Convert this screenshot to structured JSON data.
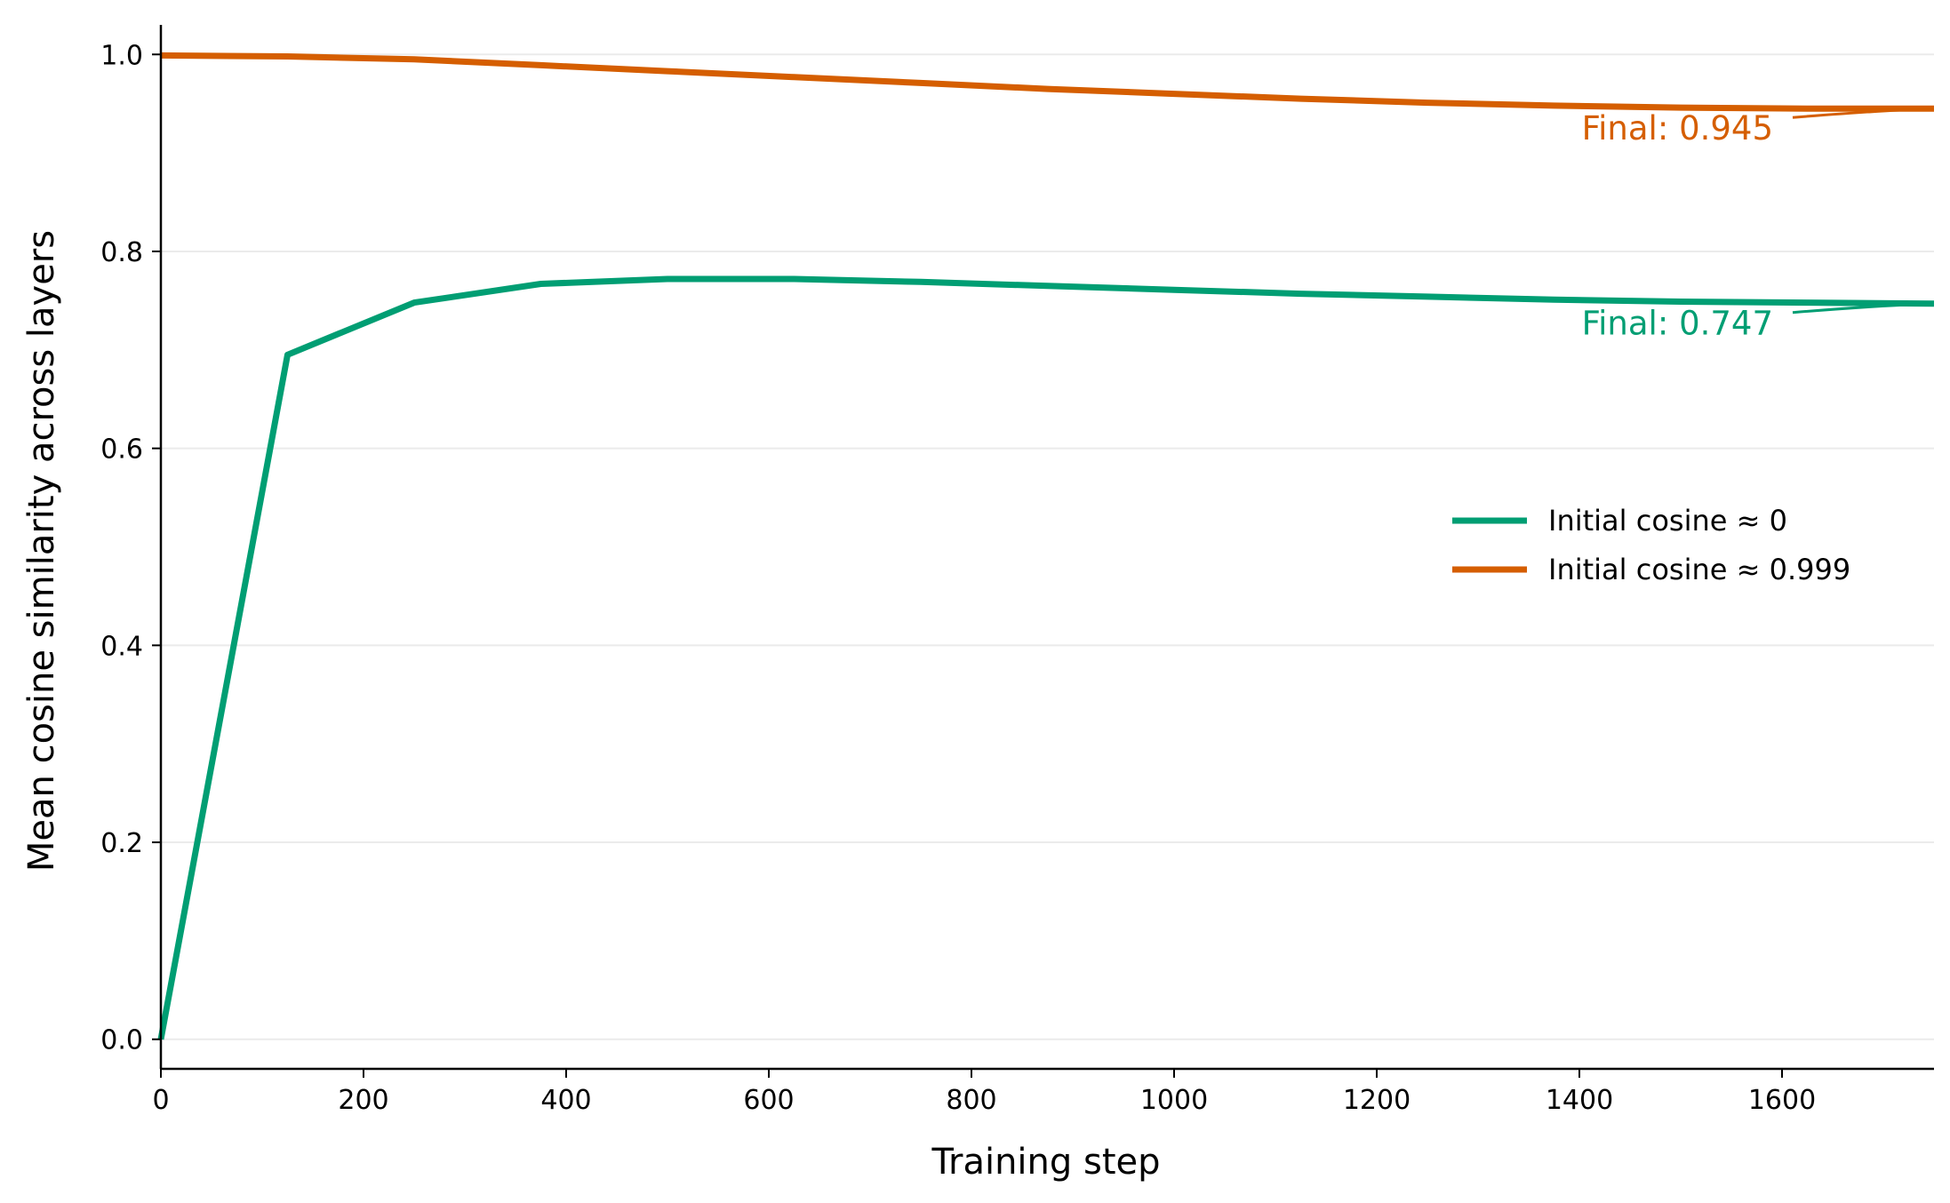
{
  "chart_data": {
    "type": "line",
    "title": "",
    "xlabel": "Training step",
    "ylabel": "Mean cosine similarity across layers",
    "xlim": [
      0,
      1750
    ],
    "ylim": [
      -0.03,
      1.03
    ],
    "xticks": [
      0,
      200,
      400,
      600,
      800,
      1000,
      1200,
      1400,
      1600
    ],
    "xtick_labels": [
      "0",
      "200",
      "400",
      "600",
      "800",
      "1000",
      "1200",
      "1400",
      "1600"
    ],
    "yticks": [
      0.0,
      0.2,
      0.4,
      0.6,
      0.8,
      1.0
    ],
    "ytick_labels": [
      "0.0",
      "0.2",
      "0.4",
      "0.6",
      "0.8",
      "1.0"
    ],
    "grid": "horizontal",
    "legend_position": "center-right",
    "series": [
      {
        "name": "Initial cosine ≈ 0",
        "color": "#009E73",
        "x": [
          0,
          125,
          250,
          375,
          500,
          625,
          750,
          875,
          1000,
          1125,
          1250,
          1375,
          1500,
          1625,
          1750
        ],
        "y": [
          0.0,
          0.695,
          0.748,
          0.767,
          0.772,
          0.772,
          0.769,
          0.765,
          0.761,
          0.757,
          0.754,
          0.751,
          0.749,
          0.748,
          0.747
        ]
      },
      {
        "name": "Initial cosine ≈ 0.999",
        "color": "#D55E00",
        "x": [
          0,
          125,
          250,
          375,
          500,
          625,
          750,
          875,
          1000,
          1125,
          1250,
          1375,
          1500,
          1625,
          1750
        ],
        "y": [
          0.999,
          0.998,
          0.995,
          0.989,
          0.983,
          0.977,
          0.971,
          0.965,
          0.96,
          0.955,
          0.951,
          0.948,
          0.946,
          0.945,
          0.945
        ]
      }
    ],
    "annotations": [
      {
        "text": "Final: 0.945",
        "color": "#D55E00",
        "x": 1750,
        "y": 0.945
      },
      {
        "text": "Final: 0.747",
        "color": "#009E73",
        "x": 1750,
        "y": 0.747
      }
    ]
  }
}
